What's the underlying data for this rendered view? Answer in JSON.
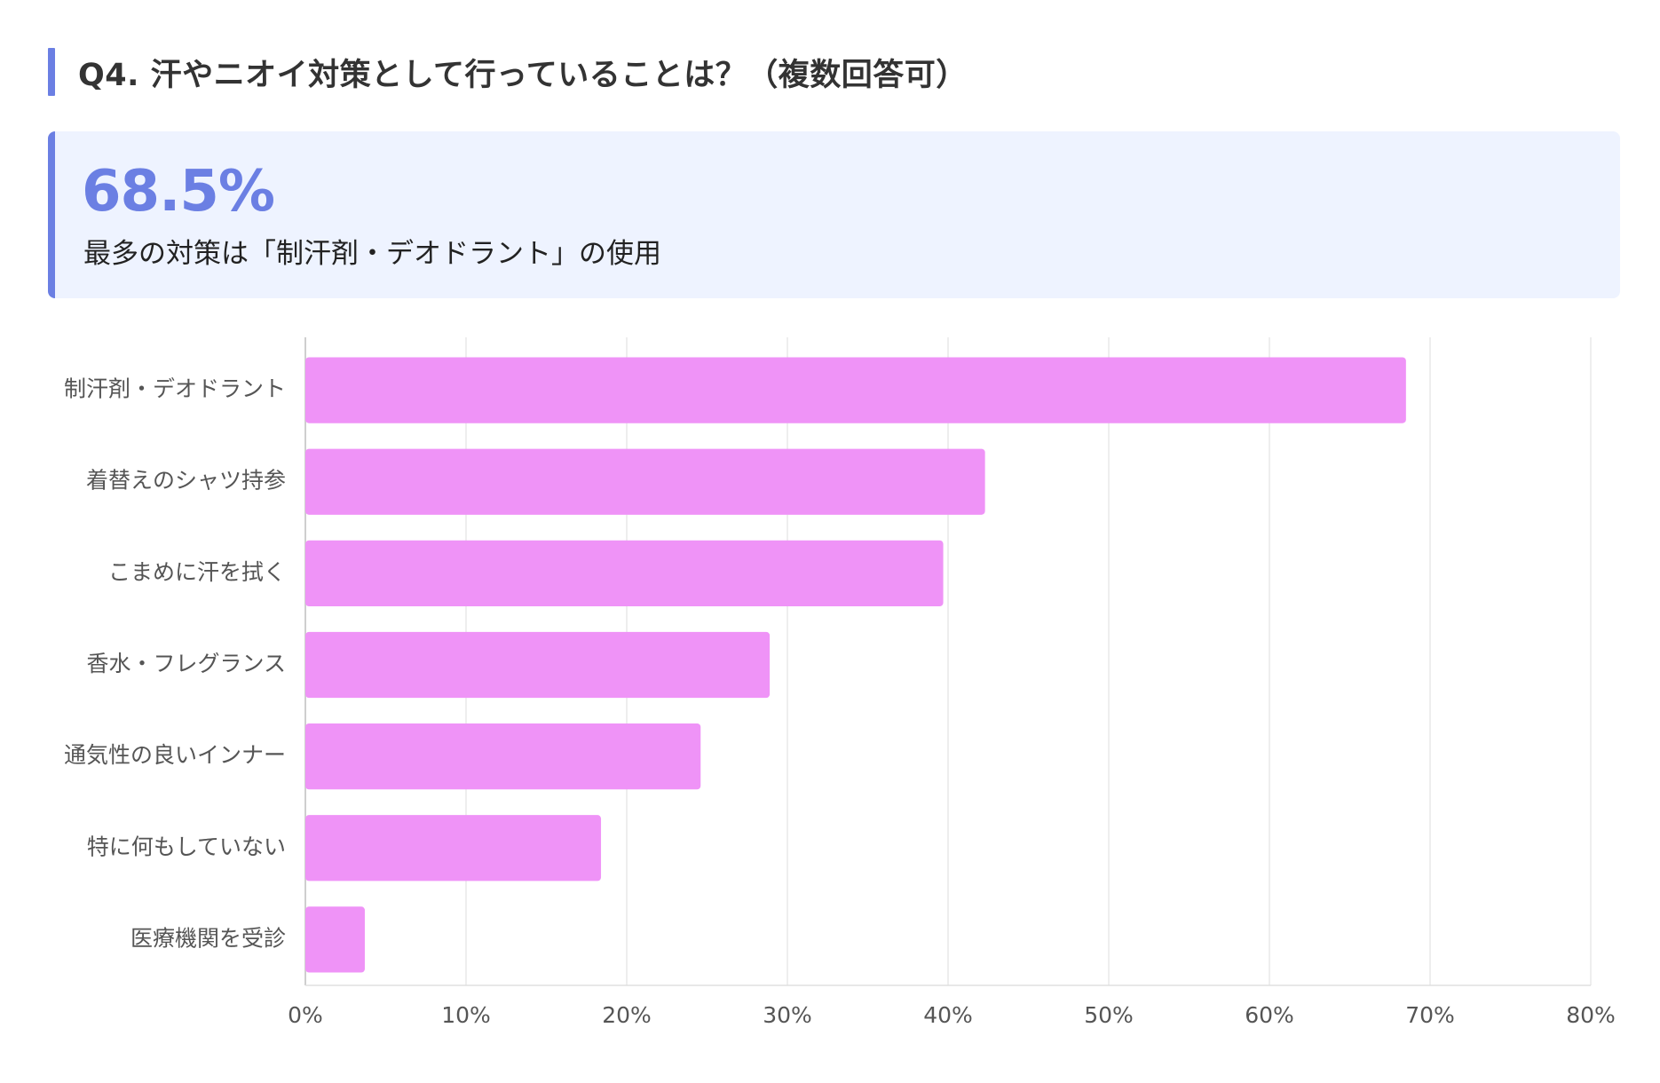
{
  "question": {
    "title": "Q4. 汗やニオイ対策として行っていることは？（複数回答可）"
  },
  "highlight": {
    "value": "68.5%",
    "caption": "最多の対策は「制汗剤・デオドラント」の使用"
  },
  "colors": {
    "accent": "#6b7fe3",
    "bar": "#ef93f7",
    "callout_bg": "#eef3ff",
    "grid": "#e8e8e8"
  },
  "chart_data": {
    "type": "bar",
    "orientation": "horizontal",
    "categories": [
      "制汗剤・デオドラント",
      "着替えのシャツ持参",
      "こまめに汗を拭く",
      "香水・フレグランス",
      "通気性の良いインナー",
      "特に何もしていない",
      "医療機関を受診"
    ],
    "values": [
      68.5,
      42.3,
      39.7,
      28.9,
      24.6,
      18.4,
      3.7
    ],
    "unit": "%",
    "xlim": [
      0,
      80
    ],
    "xticks": [
      0,
      10,
      20,
      30,
      40,
      50,
      60,
      70,
      80
    ],
    "xtick_labels": [
      "0%",
      "10%",
      "20%",
      "30%",
      "40%",
      "50%",
      "60%",
      "70%",
      "80%"
    ],
    "grid": true,
    "legend": "none"
  }
}
